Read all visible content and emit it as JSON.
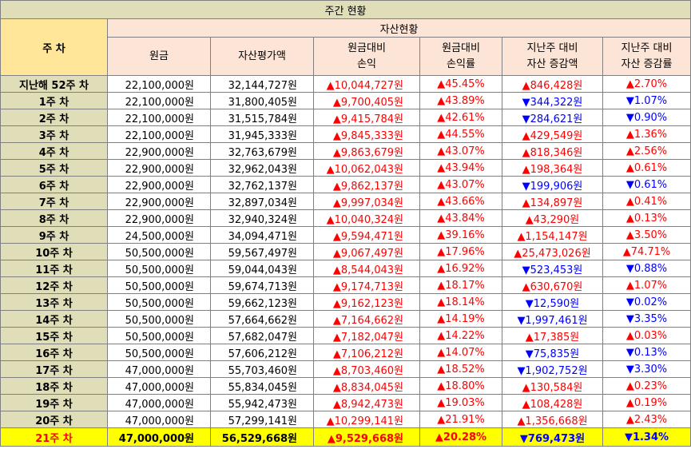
{
  "title": "주간 현황",
  "headers": {
    "week": "주 차",
    "asset_status": "자산현황",
    "columns": [
      [
        "원금"
      ],
      [
        "자산평가액"
      ],
      [
        "원금대비",
        "손익"
      ],
      [
        "원금대비",
        "손익률"
      ],
      [
        "지난주 대비",
        "자산 증감액"
      ],
      [
        "지난주 대비",
        "자산 증감률"
      ]
    ]
  },
  "rows": [
    {
      "label": "지난해 52주 차",
      "principal": "22,100,000원",
      "valuation": "32,144,727원",
      "pl": "▲10,044,727원",
      "pl_dir": "up",
      "plr": "▲45.45%",
      "plr_dir": "up",
      "chg": "▲846,428원",
      "chg_dir": "up",
      "chgr": "▲2.70%",
      "chgr_dir": "up"
    },
    {
      "label": "1주 차",
      "principal": "22,100,000원",
      "valuation": "31,800,405원",
      "pl": "▲9,700,405원",
      "pl_dir": "up",
      "plr": "▲43.89%",
      "plr_dir": "up",
      "chg": "▼344,322원",
      "chg_dir": "down",
      "chgr": "▼1.07%",
      "chgr_dir": "down"
    },
    {
      "label": "2주 차",
      "principal": "22,100,000원",
      "valuation": "31,515,784원",
      "pl": "▲9,415,784원",
      "pl_dir": "up",
      "plr": "▲42.61%",
      "plr_dir": "up",
      "chg": "▼284,621원",
      "chg_dir": "down",
      "chgr": "▼0.90%",
      "chgr_dir": "down"
    },
    {
      "label": "3주 차",
      "principal": "22,100,000원",
      "valuation": "31,945,333원",
      "pl": "▲9,845,333원",
      "pl_dir": "up",
      "plr": "▲44.55%",
      "plr_dir": "up",
      "chg": "▲429,549원",
      "chg_dir": "up",
      "chgr": "▲1.36%",
      "chgr_dir": "up"
    },
    {
      "label": "4주 차",
      "principal": "22,900,000원",
      "valuation": "32,763,679원",
      "pl": "▲9,863,679원",
      "pl_dir": "up",
      "plr": "▲43.07%",
      "plr_dir": "up",
      "chg": "▲818,346원",
      "chg_dir": "up",
      "chgr": "▲2.56%",
      "chgr_dir": "up"
    },
    {
      "label": "5주 차",
      "principal": "22,900,000원",
      "valuation": "32,962,043원",
      "pl": "▲10,062,043원",
      "pl_dir": "up",
      "plr": "▲43.94%",
      "plr_dir": "up",
      "chg": "▲198,364원",
      "chg_dir": "up",
      "chgr": "▲0.61%",
      "chgr_dir": "up"
    },
    {
      "label": "6주 차",
      "principal": "22,900,000원",
      "valuation": "32,762,137원",
      "pl": "▲9,862,137원",
      "pl_dir": "up",
      "plr": "▲43.07%",
      "plr_dir": "up",
      "chg": "▼199,906원",
      "chg_dir": "down",
      "chgr": "▼0.61%",
      "chgr_dir": "down"
    },
    {
      "label": "7주 차",
      "principal": "22,900,000원",
      "valuation": "32,897,034원",
      "pl": "▲9,997,034원",
      "pl_dir": "up",
      "plr": "▲43.66%",
      "plr_dir": "up",
      "chg": "▲134,897원",
      "chg_dir": "up",
      "chgr": "▲0.41%",
      "chgr_dir": "up"
    },
    {
      "label": "8주 차",
      "principal": "22,900,000원",
      "valuation": "32,940,324원",
      "pl": "▲10,040,324원",
      "pl_dir": "up",
      "plr": "▲43.84%",
      "plr_dir": "up",
      "chg": "▲43,290원",
      "chg_dir": "up",
      "chgr": "▲0.13%",
      "chgr_dir": "up"
    },
    {
      "label": "9주 차",
      "principal": "24,500,000원",
      "valuation": "34,094,471원",
      "pl": "▲9,594,471원",
      "pl_dir": "up",
      "plr": "▲39.16%",
      "plr_dir": "up",
      "chg": "▲1,154,147원",
      "chg_dir": "up",
      "chgr": "▲3.50%",
      "chgr_dir": "up"
    },
    {
      "label": "10주 차",
      "principal": "50,500,000원",
      "valuation": "59,567,497원",
      "pl": "▲9,067,497원",
      "pl_dir": "up",
      "plr": "▲17.96%",
      "plr_dir": "up",
      "chg": "▲25,473,026원",
      "chg_dir": "up",
      "chgr": "▲74.71%",
      "chgr_dir": "up"
    },
    {
      "label": "11주 차",
      "principal": "50,500,000원",
      "valuation": "59,044,043원",
      "pl": "▲8,544,043원",
      "pl_dir": "up",
      "plr": "▲16.92%",
      "plr_dir": "up",
      "chg": "▼523,453원",
      "chg_dir": "down",
      "chgr": "▼0.88%",
      "chgr_dir": "down"
    },
    {
      "label": "12주 차",
      "principal": "50,500,000원",
      "valuation": "59,674,713원",
      "pl": "▲9,174,713원",
      "pl_dir": "up",
      "plr": "▲18.17%",
      "plr_dir": "up",
      "chg": "▲630,670원",
      "chg_dir": "up",
      "chgr": "▲1.07%",
      "chgr_dir": "up"
    },
    {
      "label": "13주 차",
      "principal": "50,500,000원",
      "valuation": "59,662,123원",
      "pl": "▲9,162,123원",
      "pl_dir": "up",
      "plr": "▲18.14%",
      "plr_dir": "up",
      "chg": "▼12,590원",
      "chg_dir": "down",
      "chgr": "▼0.02%",
      "chgr_dir": "down"
    },
    {
      "label": "14주 차",
      "principal": "50,500,000원",
      "valuation": "57,664,662원",
      "pl": "▲7,164,662원",
      "pl_dir": "up",
      "plr": "▲14.19%",
      "plr_dir": "up",
      "chg": "▼1,997,461원",
      "chg_dir": "down",
      "chgr": "▼3.35%",
      "chgr_dir": "down"
    },
    {
      "label": "15주 차",
      "principal": "50,500,000원",
      "valuation": "57,682,047원",
      "pl": "▲7,182,047원",
      "pl_dir": "up",
      "plr": "▲14.22%",
      "plr_dir": "up",
      "chg": "▲17,385원",
      "chg_dir": "up",
      "chgr": "▲0.03%",
      "chgr_dir": "up"
    },
    {
      "label": "16주 차",
      "principal": "50,500,000원",
      "valuation": "57,606,212원",
      "pl": "▲7,106,212원",
      "pl_dir": "up",
      "plr": "▲14.07%",
      "plr_dir": "up",
      "chg": "▼75,835원",
      "chg_dir": "down",
      "chgr": "▼0.13%",
      "chgr_dir": "down"
    },
    {
      "label": "17주 차",
      "principal": "47,000,000원",
      "valuation": "55,703,460원",
      "pl": "▲8,703,460원",
      "pl_dir": "up",
      "plr": "▲18.52%",
      "plr_dir": "up",
      "chg": "▼1,902,752원",
      "chg_dir": "down",
      "chgr": "▼3.30%",
      "chgr_dir": "down"
    },
    {
      "label": "18주 차",
      "principal": "47,000,000원",
      "valuation": "55,834,045원",
      "pl": "▲8,834,045원",
      "pl_dir": "up",
      "plr": "▲18.80%",
      "plr_dir": "up",
      "chg": "▲130,584원",
      "chg_dir": "up",
      "chgr": "▲0.23%",
      "chgr_dir": "up"
    },
    {
      "label": "19주 차",
      "principal": "47,000,000원",
      "valuation": "55,942,473원",
      "pl": "▲8,942,473원",
      "pl_dir": "up",
      "plr": "▲19.03%",
      "plr_dir": "up",
      "chg": "▲108,428원",
      "chg_dir": "up",
      "chgr": "▲0.19%",
      "chgr_dir": "up"
    },
    {
      "label": "20주 차",
      "principal": "47,000,000원",
      "valuation": "57,299,141원",
      "pl": "▲10,299,141원",
      "pl_dir": "up",
      "plr": "▲21.91%",
      "plr_dir": "up",
      "chg": "▲1,356,668원",
      "chg_dir": "up",
      "chgr": "▲2.43%",
      "chgr_dir": "up"
    },
    {
      "label": "21주 차",
      "principal": "47,000,000원",
      "valuation": "56,529,668원",
      "pl": "▲9,529,668원",
      "pl_dir": "up",
      "plr": "▲20.28%",
      "plr_dir": "up",
      "chg": "▼769,473원",
      "chg_dir": "down",
      "chgr": "▼1.34%",
      "chgr_dir": "down"
    }
  ],
  "colors": {
    "title_bg": "#e0ddb9",
    "week_header_bg": "#ffe699",
    "asset_header_bg": "#fce4d6",
    "label_bg": "#e0ddb9",
    "highlight_bg": "#ffff00",
    "up": "#ff0000",
    "down": "#0000ff"
  }
}
